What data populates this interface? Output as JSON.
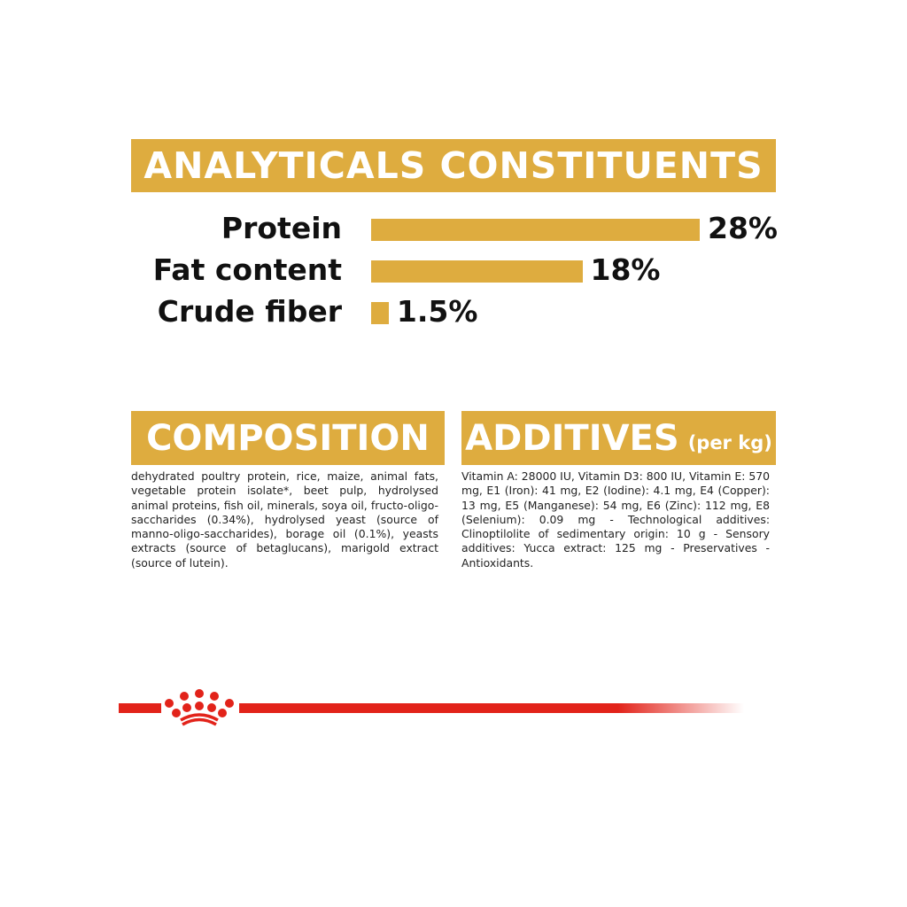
{
  "header": {
    "title": "ANALYTICALS CONSTITUENTS"
  },
  "chart_data": {
    "type": "bar",
    "orientation": "horizontal",
    "categories": [
      "Protein",
      "Fat content",
      "Crude fiber"
    ],
    "values": [
      28,
      18,
      1.5
    ],
    "value_labels": [
      "28%",
      "18%",
      "1.5%"
    ],
    "unit": "%",
    "grid": false,
    "bar_color": "#DEAC3F"
  },
  "composition": {
    "title": "COMPOSITION",
    "text": "dehydrated poultry protein, rice, maize, animal fats, vegetable protein isolate*, beet pulp, hydrolysed animal proteins, fish oil, minerals, soya oil, fructo-oligo-saccharides (0.34%), hydrolysed yeast (source of manno-oligo-saccharides), borage oil (0.1%), yeasts extracts (source of betaglucans), marigold extract (source of lutein)."
  },
  "additives": {
    "title": "ADDITIVES",
    "subtitle": "(per kg)",
    "text": "Vitamin A: 28000 IU, Vitamin D3: 800 IU, Vitamin E: 570 mg, E1 (Iron): 41 mg, E2 (Iodine): 4.1 mg, E4 (Copper): 13 mg, E5 (Manganese): 54 mg, E6 (Zinc): 112 mg, E8 (Selenium): 0.09 mg - Technological additives: Clinoptilolite of sedimentary origin: 10 g - Sensory additives: Yucca extract: 125 mg - Preservatives - Antioxidants."
  },
  "colors": {
    "accent": "#DEAC3F",
    "brand_red": "#E2231A"
  },
  "logo": {
    "icon": "royal-canin-crown-icon"
  }
}
